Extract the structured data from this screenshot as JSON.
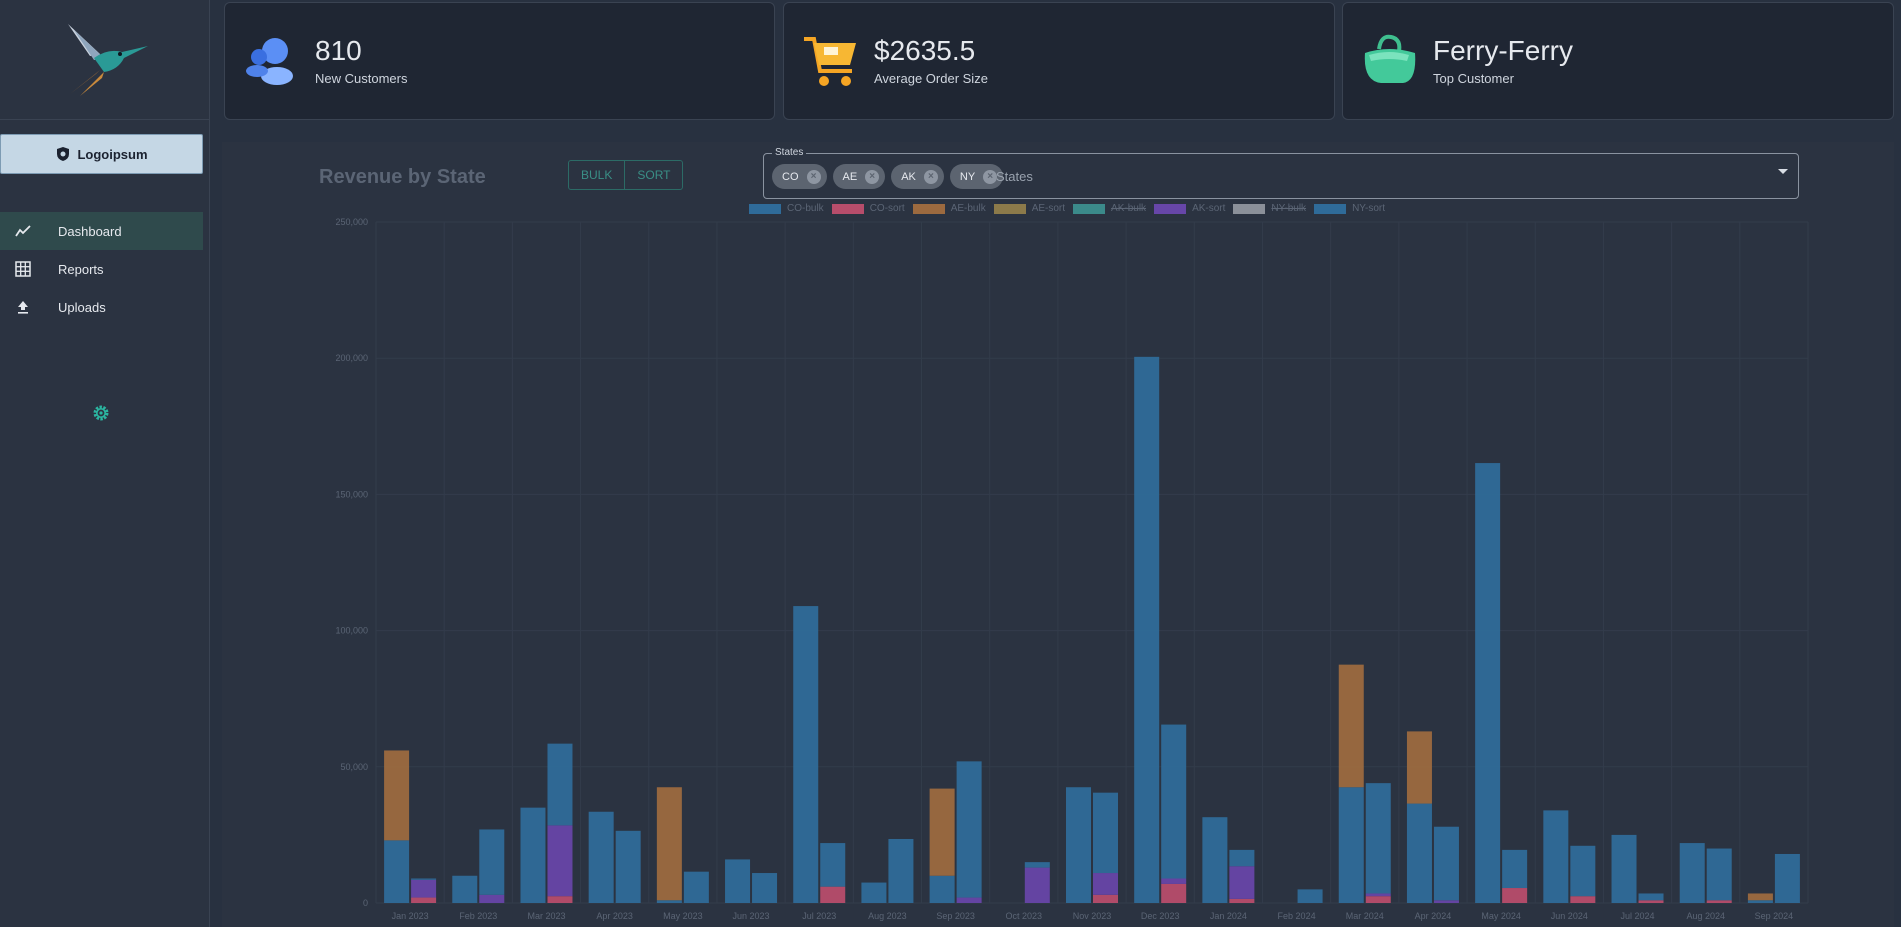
{
  "sidebar": {
    "brand_label": "Logoipsum",
    "nav": [
      {
        "label": "Dashboard",
        "icon": "trending-line-icon",
        "active": true
      },
      {
        "label": "Reports",
        "icon": "grid-table-icon",
        "active": false
      },
      {
        "label": "Uploads",
        "icon": "upload-icon",
        "active": false
      }
    ]
  },
  "kpis": [
    {
      "value": "810",
      "label": "New Customers",
      "icon": "customers-icon"
    },
    {
      "value": "$2635.5",
      "label": "Average Order Size",
      "icon": "cart-icon"
    },
    {
      "value": "Ferry-Ferry",
      "label": "Top Customer",
      "icon": "bag-icon"
    }
  ],
  "panel": {
    "title": "Revenue by State",
    "toggle": [
      "BULK",
      "SORT"
    ],
    "states_label": "States",
    "states_placeholder": "States",
    "chips": [
      "CO",
      "AE",
      "AK",
      "NY"
    ]
  },
  "colors": {
    "CO-bulk": "#2f6b99",
    "CO-sort": "#b74d6b",
    "AE-bulk": "#9c6a3f",
    "AE-sort": "#8c7a4a",
    "AK-bulk": "#3b8a8a",
    "AK-sort": "#6746a8",
    "NY-bulk": "#8b9099",
    "NY-sort": "#2f6b99"
  },
  "chart_data": {
    "type": "bar",
    "stacked": true,
    "legend": [
      {
        "name": "CO-bulk",
        "hidden": false
      },
      {
        "name": "CO-sort",
        "hidden": false
      },
      {
        "name": "AE-bulk",
        "hidden": false
      },
      {
        "name": "AE-sort",
        "hidden": false
      },
      {
        "name": "AK-bulk",
        "hidden": true
      },
      {
        "name": "AK-sort",
        "hidden": false
      },
      {
        "name": "NY-bulk",
        "hidden": true
      },
      {
        "name": "NY-sort",
        "hidden": false
      }
    ],
    "legend_position": "top",
    "categories": [
      "Jan 2023",
      "Feb 2023",
      "Mar 2023",
      "Apr 2023",
      "May 2023",
      "Jun 2023",
      "Jul 2023",
      "Aug 2023",
      "Sep 2023",
      "Oct 2023",
      "Nov 2023",
      "Dec 2023",
      "Jan 2024",
      "Feb 2024",
      "Mar 2024",
      "Apr 2024",
      "May 2024",
      "Jun 2024",
      "Jul 2024",
      "Aug 2024",
      "Sep 2024"
    ],
    "ylim": [
      0,
      250000
    ],
    "yticks": [
      0,
      50000,
      100000,
      150000,
      200000,
      250000
    ],
    "ytick_labels": [
      "0",
      "50,000",
      "100,000",
      "150,000",
      "200,000",
      "250,000"
    ],
    "grid": true,
    "bars": [
      {
        "category": "Jan 2023",
        "stack": "bulk",
        "segments": {
          "CO-bulk": 23000,
          "AE-bulk": 33000
        }
      },
      {
        "category": "Jan 2023",
        "stack": "sort",
        "segments": {
          "CO-sort": 2000,
          "AK-sort": 6500,
          "NY-sort": 500
        }
      },
      {
        "category": "Feb 2023",
        "stack": "bulk",
        "segments": {
          "CO-bulk": 10000
        }
      },
      {
        "category": "Feb 2023",
        "stack": "sort",
        "segments": {
          "AK-sort": 3000,
          "NY-sort": 24000
        }
      },
      {
        "category": "Mar 2023",
        "stack": "bulk",
        "segments": {
          "CO-bulk": 35000
        }
      },
      {
        "category": "Mar 2023",
        "stack": "sort",
        "segments": {
          "CO-sort": 2500,
          "AK-sort": 26000,
          "NY-sort": 30000
        }
      },
      {
        "category": "Apr 2023",
        "stack": "bulk",
        "segments": {
          "CO-bulk": 33500
        }
      },
      {
        "category": "Apr 2023",
        "stack": "sort",
        "segments": {
          "NY-sort": 26500
        }
      },
      {
        "category": "May 2023",
        "stack": "bulk",
        "segments": {
          "CO-bulk": 1000,
          "AE-bulk": 41500
        }
      },
      {
        "category": "May 2023",
        "stack": "sort",
        "segments": {
          "NY-sort": 11500
        }
      },
      {
        "category": "Jun 2023",
        "stack": "bulk",
        "segments": {
          "CO-bulk": 16000
        }
      },
      {
        "category": "Jun 2023",
        "stack": "sort",
        "segments": {
          "NY-sort": 11000
        }
      },
      {
        "category": "Jul 2023",
        "stack": "bulk",
        "segments": {
          "CO-bulk": 109000
        }
      },
      {
        "category": "Jul 2023",
        "stack": "sort",
        "segments": {
          "CO-sort": 6000,
          "NY-sort": 16000
        }
      },
      {
        "category": "Aug 2023",
        "stack": "bulk",
        "segments": {
          "CO-bulk": 7500
        }
      },
      {
        "category": "Aug 2023",
        "stack": "sort",
        "segments": {
          "NY-sort": 23500
        }
      },
      {
        "category": "Sep 2023",
        "stack": "bulk",
        "segments": {
          "CO-bulk": 10000,
          "AE-bulk": 32000
        }
      },
      {
        "category": "Sep 2023",
        "stack": "sort",
        "segments": {
          "AK-sort": 2000,
          "NY-sort": 50000
        }
      },
      {
        "category": "Oct 2023",
        "stack": "sort",
        "segments": {
          "AK-sort": 13000,
          "NY-sort": 2000
        }
      },
      {
        "category": "Nov 2023",
        "stack": "bulk",
        "segments": {
          "CO-bulk": 42500
        }
      },
      {
        "category": "Nov 2023",
        "stack": "sort",
        "segments": {
          "CO-sort": 3000,
          "AK-sort": 8000,
          "NY-sort": 29500
        }
      },
      {
        "category": "Dec 2023",
        "stack": "bulk",
        "segments": {
          "CO-bulk": 200500
        }
      },
      {
        "category": "Dec 2023",
        "stack": "sort",
        "segments": {
          "CO-sort": 7000,
          "AK-sort": 2000,
          "NY-sort": 56500
        }
      },
      {
        "category": "Jan 2024",
        "stack": "bulk",
        "segments": {
          "CO-bulk": 31500
        }
      },
      {
        "category": "Jan 2024",
        "stack": "sort",
        "segments": {
          "CO-sort": 1500,
          "AK-sort": 12000,
          "NY-sort": 6000
        }
      },
      {
        "category": "Feb 2024",
        "stack": "sort",
        "segments": {
          "NY-sort": 5000
        }
      },
      {
        "category": "Mar 2024",
        "stack": "bulk",
        "segments": {
          "CO-bulk": 42500,
          "AE-bulk": 45000
        }
      },
      {
        "category": "Mar 2024",
        "stack": "sort",
        "segments": {
          "CO-sort": 2500,
          "AK-sort": 1000,
          "NY-sort": 40500
        }
      },
      {
        "category": "Apr 2024",
        "stack": "bulk",
        "segments": {
          "CO-bulk": 36500,
          "AE-bulk": 26500
        }
      },
      {
        "category": "Apr 2024",
        "stack": "sort",
        "segments": {
          "AK-sort": 1000,
          "NY-sort": 27000
        }
      },
      {
        "category": "May 2024",
        "stack": "bulk",
        "segments": {
          "CO-bulk": 161500
        }
      },
      {
        "category": "May 2024",
        "stack": "sort",
        "segments": {
          "CO-sort": 5500,
          "NY-sort": 14000
        }
      },
      {
        "category": "Jun 2024",
        "stack": "bulk",
        "segments": {
          "CO-bulk": 34000
        }
      },
      {
        "category": "Jun 2024",
        "stack": "sort",
        "segments": {
          "CO-sort": 2500,
          "NY-sort": 18500
        }
      },
      {
        "category": "Jul 2024",
        "stack": "bulk",
        "segments": {
          "CO-bulk": 25000
        }
      },
      {
        "category": "Jul 2024",
        "stack": "sort",
        "segments": {
          "CO-sort": 1000,
          "NY-sort": 2500
        }
      },
      {
        "category": "Aug 2024",
        "stack": "bulk",
        "segments": {
          "CO-bulk": 22000
        }
      },
      {
        "category": "Aug 2024",
        "stack": "sort",
        "segments": {
          "CO-sort": 1000,
          "NY-sort": 19000
        }
      },
      {
        "category": "Sep 2024",
        "stack": "bulk",
        "segments": {
          "CO-bulk": 1000,
          "AE-bulk": 2500
        }
      },
      {
        "category": "Sep 2024",
        "stack": "sort",
        "segments": {
          "NY-sort": 18000
        }
      }
    ]
  }
}
